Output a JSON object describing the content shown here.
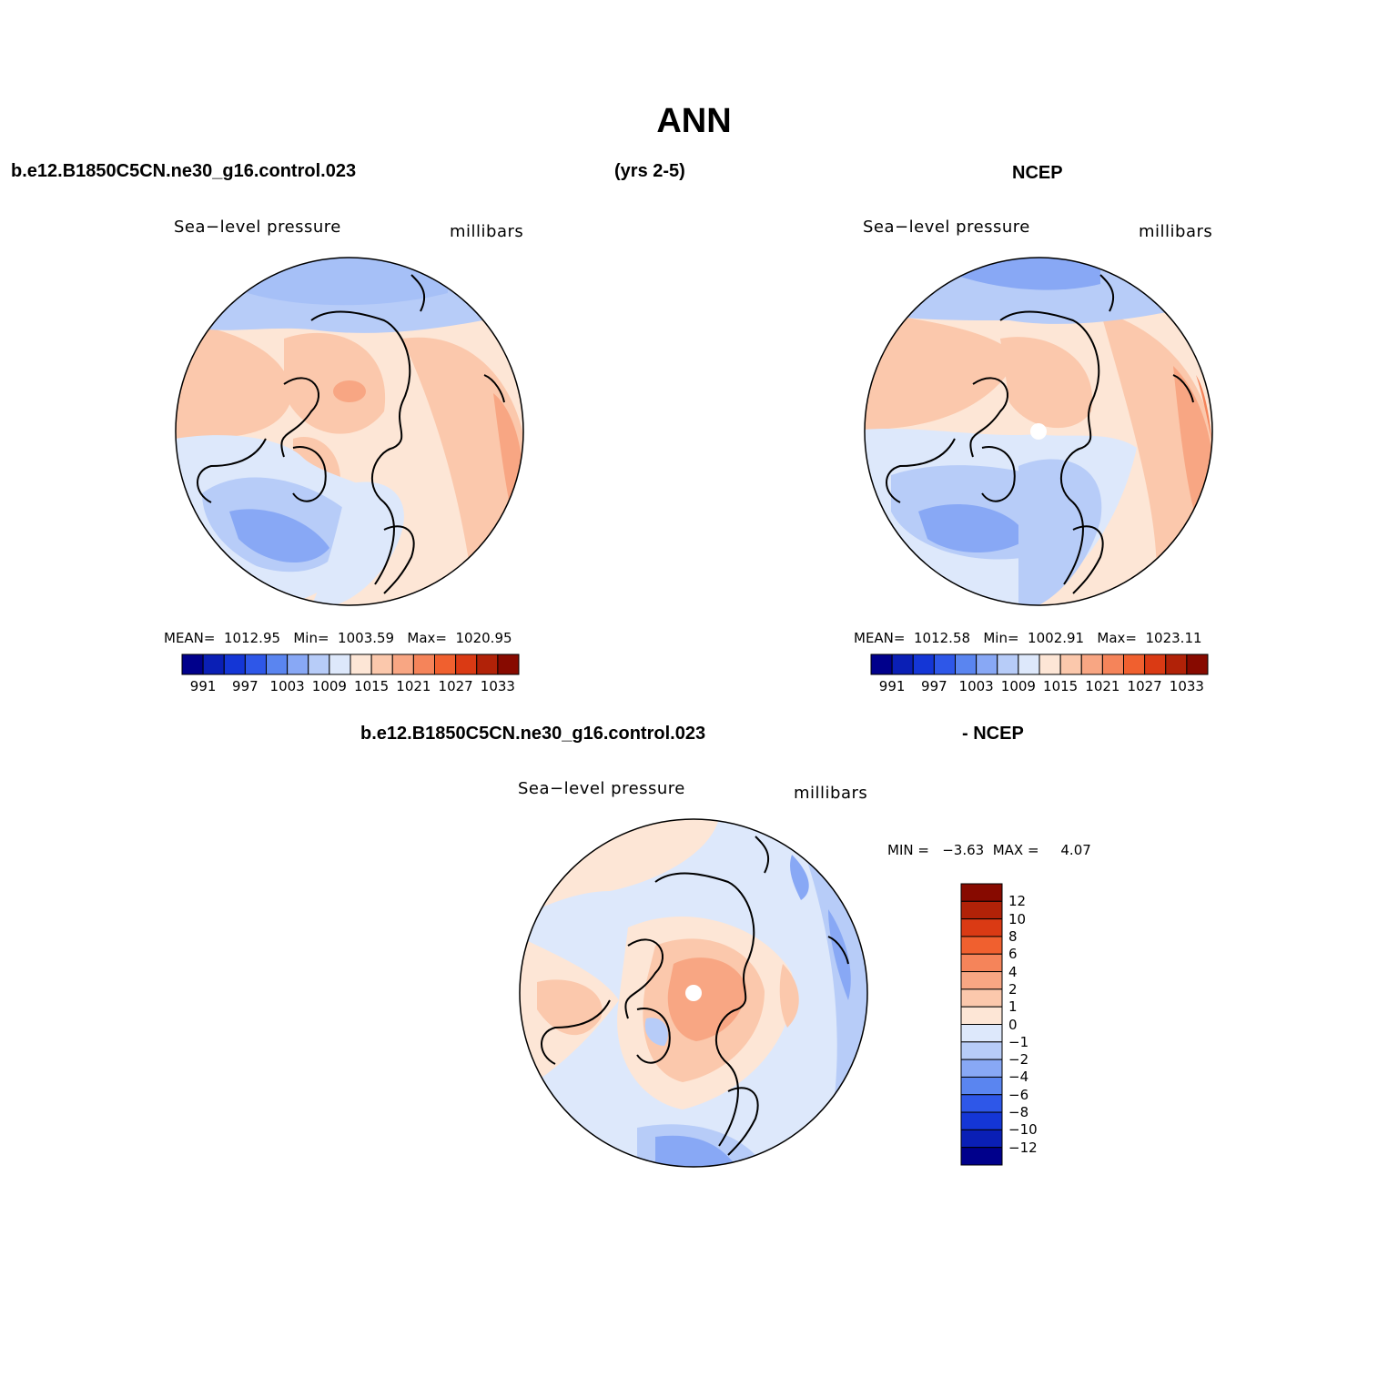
{
  "page_title": "ANN",
  "header": {
    "case_name": "b.e12.B1850C5CN.ne30_g16.control.023",
    "years": "(yrs 2-5)",
    "obs_name": "NCEP"
  },
  "panels": {
    "model": {
      "variable": "Sea−level pressure",
      "units": "millibars",
      "stats": "MEAN=  1012.95   Min=  1003.59   Max=  1020.95"
    },
    "obs": {
      "variable": "Sea−level pressure",
      "units": "millibars",
      "stats": "MEAN=  1012.58   Min=  1002.91   Max=  1023.11"
    },
    "diff": {
      "title_left": "b.e12.B1850C5CN.ne30_g16.control.023",
      "title_right": "- NCEP",
      "variable": "Sea−level pressure",
      "units": "millibars",
      "stats": "MIN =   −3.63  MAX =     4.07"
    }
  },
  "colorbars": {
    "absolute": {
      "colors": [
        "#00008b",
        "#0a1fb5",
        "#1436d6",
        "#2e57e8",
        "#5a85f0",
        "#88a8f5",
        "#b7ccf8",
        "#dde8fb",
        "#fde6d6",
        "#fbc8ac",
        "#f8a683",
        "#f5845a",
        "#f0602f",
        "#da3a14",
        "#b12208",
        "#870a00"
      ],
      "labels": [
        "991",
        "997",
        "1003",
        "1009",
        "1015",
        "1021",
        "1027",
        "1033"
      ]
    },
    "difference": {
      "colors": [
        "#00008b",
        "#0a1fb5",
        "#1436d6",
        "#2e57e8",
        "#5a85f0",
        "#88a8f5",
        "#b7ccf8",
        "#dde8fb",
        "#fde6d6",
        "#fbc8ac",
        "#f8a683",
        "#f5845a",
        "#f0602f",
        "#da3a14",
        "#b12208",
        "#870a00"
      ],
      "labels": [
        "12",
        "10",
        "8",
        "6",
        "4",
        "2",
        "1",
        "0",
        "−1",
        "−2",
        "−4",
        "−6",
        "−8",
        "−10",
        "−12"
      ]
    }
  }
}
